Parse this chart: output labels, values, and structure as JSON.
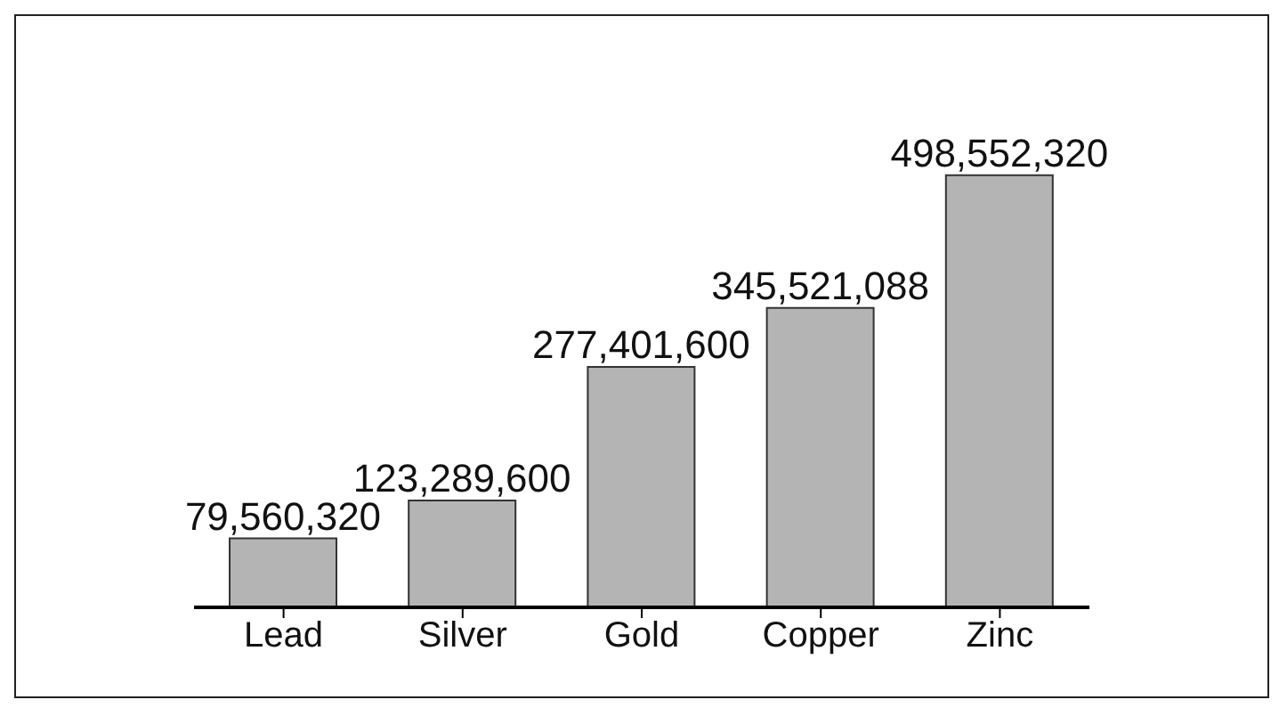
{
  "chart_data": {
    "type": "bar",
    "categories": [
      "Lead",
      "Silver",
      "Gold",
      "Copper",
      "Zinc"
    ],
    "values": [
      79560320,
      123289600,
      277401600,
      345521088,
      498552320
    ],
    "value_labels": [
      "79,560,320",
      "123,289,600",
      "277,401,600",
      "345,521,088",
      "498,552,320"
    ],
    "color": "#b4b4b4"
  }
}
